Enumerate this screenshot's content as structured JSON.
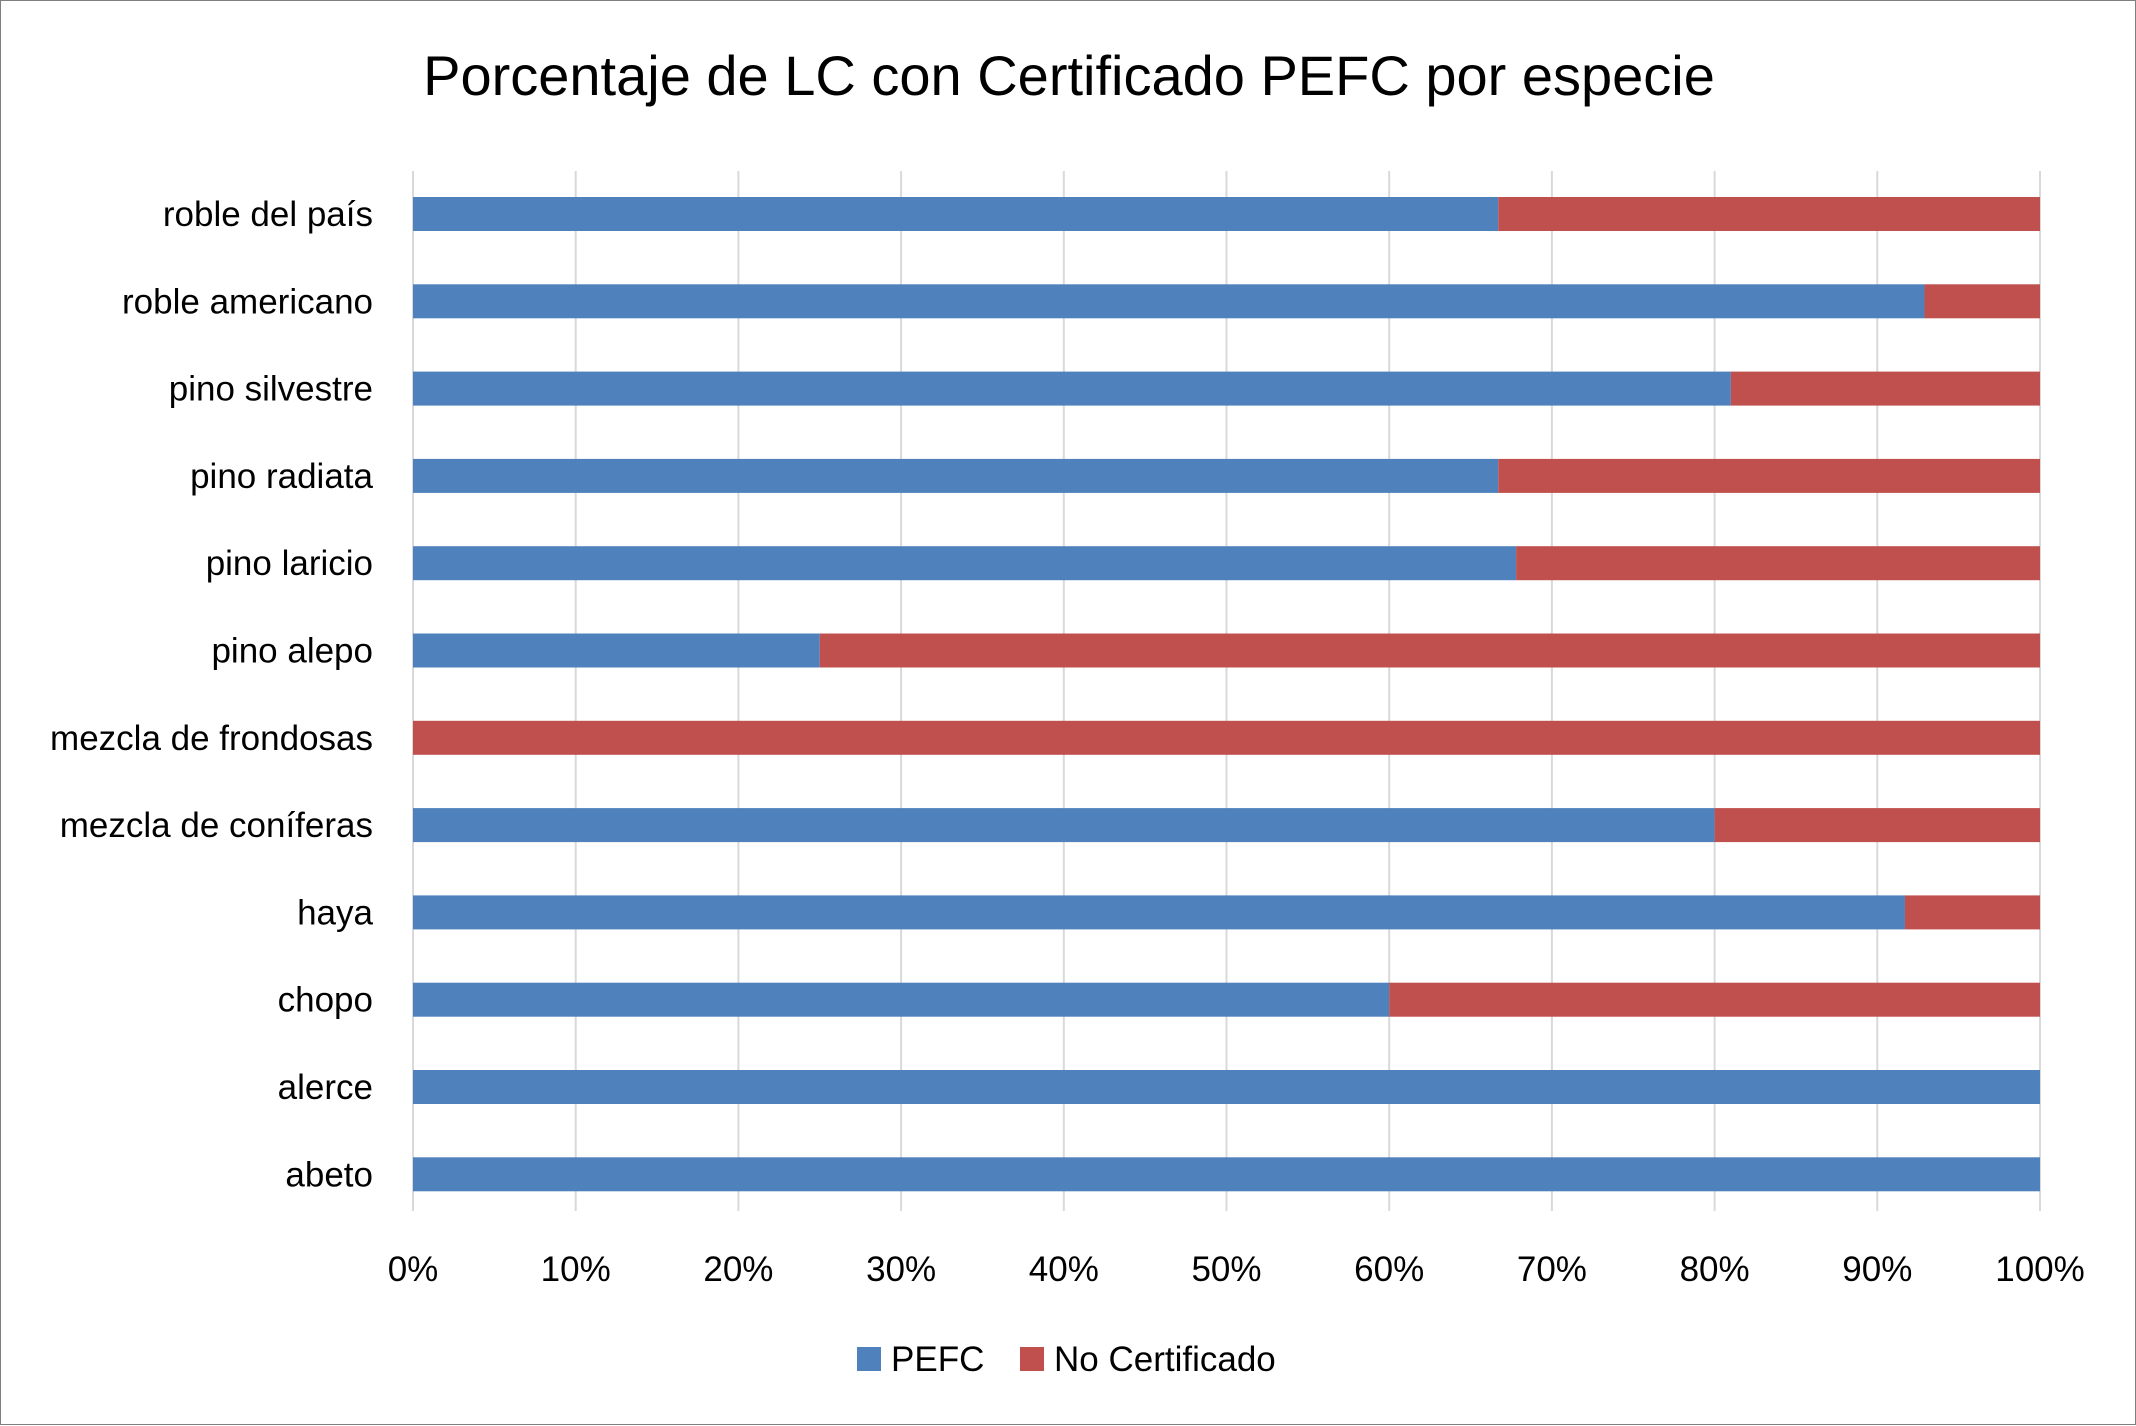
{
  "chart_data": {
    "type": "bar",
    "orientation": "horizontal",
    "stacked": "percent",
    "title": "Porcentaje de LC con Certificado PEFC por especie",
    "categories": [
      "roble del país",
      "roble americano",
      "pino silvestre",
      "pino radiata",
      "pino laricio",
      "pino alepo",
      "mezcla de frondosas",
      "mezcla de coníferas",
      "haya",
      "chopo",
      "alerce",
      "abeto"
    ],
    "series": [
      {
        "name": "PEFC",
        "color": "#4f81bd",
        "values": [
          66.7,
          92.9,
          81.0,
          66.7,
          67.8,
          25.0,
          0,
          80.0,
          91.7,
          60.0,
          100,
          100
        ]
      },
      {
        "name": "No Certificado",
        "color": "#c0504d",
        "values": [
          33.3,
          7.1,
          19.0,
          33.3,
          32.2,
          75.0,
          100,
          20.0,
          8.3,
          40.0,
          0,
          0
        ]
      }
    ],
    "xlim": [
      0,
      100
    ],
    "x_ticks": [
      "0%",
      "10%",
      "20%",
      "30%",
      "40%",
      "50%",
      "60%",
      "70%",
      "80%",
      "90%",
      "100%"
    ],
    "grid": true,
    "legend_position": "bottom"
  }
}
